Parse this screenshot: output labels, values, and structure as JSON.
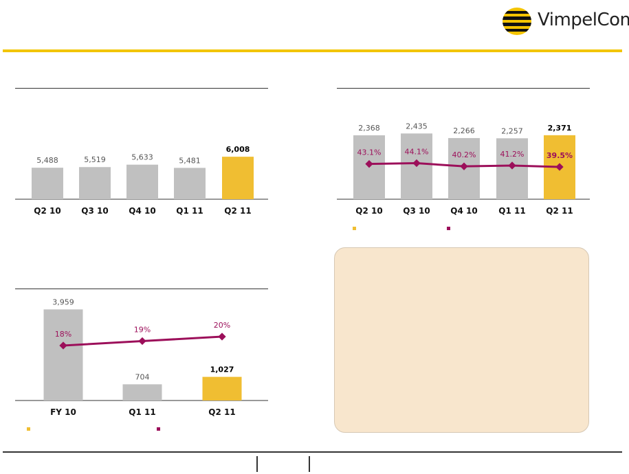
{
  "brand": {
    "name": "VimpelCom"
  },
  "colors": {
    "gold": "#f2c500",
    "bar_gold": "#f0be32",
    "bar_gray": "#c0c0c0",
    "line": "#9c0f5a",
    "info_bg": "#f8e6cd"
  },
  "chart_data": [
    {
      "type": "bar",
      "categories": [
        "Q2 10",
        "Q3 10",
        "Q4 10",
        "Q1 11",
        "Q2 11"
      ],
      "values": [
        5488,
        5519,
        5633,
        5481,
        6008
      ],
      "labels": [
        "5,488",
        "5,519",
        "5,633",
        "5,481",
        "6,008"
      ],
      "highlight_index": 4
    },
    {
      "type": "bar",
      "categories": [
        "Q2 10",
        "Q3 10",
        "Q4 10",
        "Q1 11",
        "Q2 11"
      ],
      "values": [
        2368,
        2435,
        2266,
        2257,
        2371
      ],
      "labels": [
        "2,368",
        "2,435",
        "2,266",
        "2,257",
        "2,371"
      ],
      "highlight_index": 4,
      "line_series": {
        "values": [
          43.1,
          44.1,
          40.2,
          41.2,
          39.5
        ],
        "labels": [
          "43.1%",
          "44.1%",
          "40.2%",
          "41.2%",
          "39.5%"
        ]
      }
    },
    {
      "type": "bar",
      "categories": [
        "FY 10",
        "Q1 11",
        "Q2 11"
      ],
      "values": [
        3959,
        704,
        1027
      ],
      "labels": [
        "3,959",
        "704",
        "1,027"
      ],
      "highlight_index": 2,
      "line_series": {
        "values": [
          18,
          19,
          20
        ],
        "labels": [
          "18%",
          "19%",
          "20%"
        ]
      }
    }
  ]
}
